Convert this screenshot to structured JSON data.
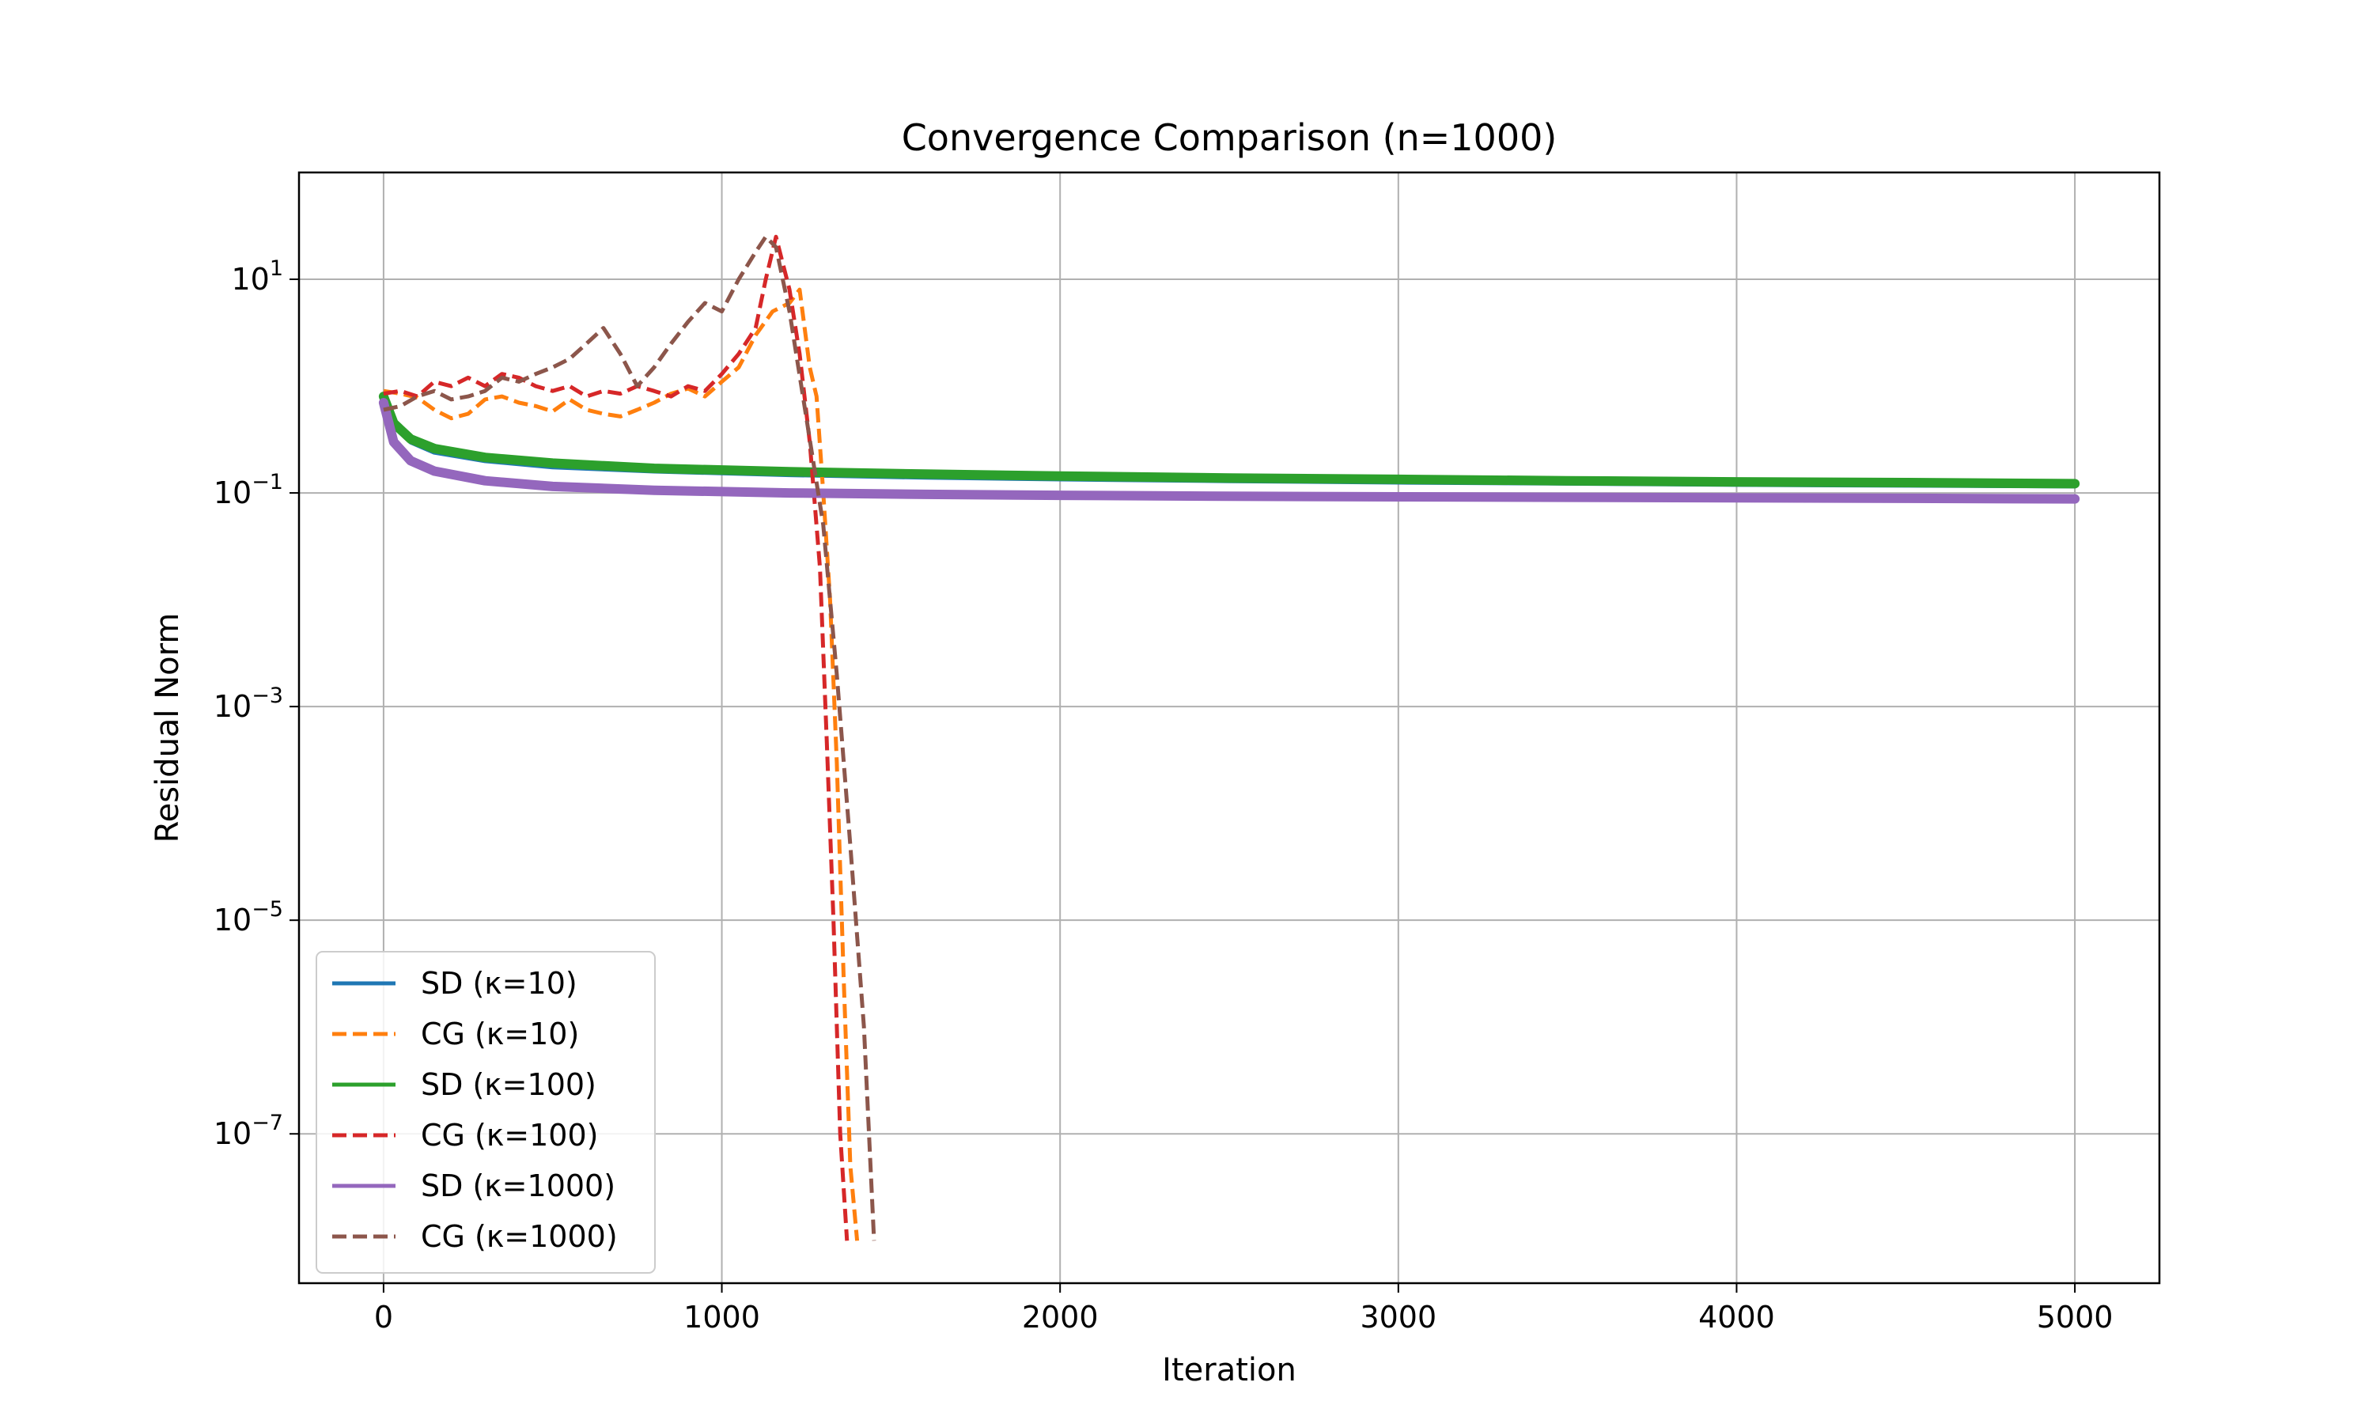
{
  "chart_data": {
    "type": "line",
    "title": "Convergence Comparison (n=1000)",
    "xlabel": "Iteration",
    "ylabel": "Residual Norm",
    "xlim": [
      -250,
      5250
    ],
    "ylim": [
      4e-09,
      100
    ],
    "yscale": "log",
    "xticks": [
      {
        "value": 0,
        "label": "0"
      },
      {
        "value": 1000,
        "label": "1000"
      },
      {
        "value": 2000,
        "label": "2000"
      },
      {
        "value": 3000,
        "label": "3000"
      },
      {
        "value": 4000,
        "label": "4000"
      },
      {
        "value": 5000,
        "label": "5000"
      }
    ],
    "yticks": [
      {
        "value": 10,
        "base": "10",
        "exp": "1"
      },
      {
        "value": 0.1,
        "base": "10",
        "exp": "−1"
      },
      {
        "value": 0.001,
        "base": "10",
        "exp": "−3"
      },
      {
        "value": 1e-05,
        "base": "10",
        "exp": "−5"
      },
      {
        "value": 1e-07,
        "base": "10",
        "exp": "−7"
      }
    ],
    "grid": true,
    "legend": "lower-left",
    "series": [
      {
        "name": "SD (κ=10)",
        "color": "#1f77b4",
        "dash": false,
        "width": 6,
        "x": [
          0,
          30,
          80,
          150,
          300,
          500,
          800,
          1200,
          1600,
          2000,
          2500,
          3000,
          3500,
          4000,
          4500,
          5000
        ],
        "y": [
          0.75,
          0.42,
          0.3,
          0.24,
          0.2,
          0.175,
          0.16,
          0.148,
          0.14,
          0.135,
          0.13,
          0.126,
          0.123,
          0.12,
          0.118,
          0.116
        ]
      },
      {
        "name": "CG (κ=10)",
        "color": "#ff7f0e",
        "dash": true,
        "width": 5,
        "x": [
          0,
          50,
          100,
          150,
          200,
          250,
          300,
          350,
          400,
          450,
          500,
          550,
          600,
          650,
          700,
          750,
          800,
          850,
          900,
          950,
          1000,
          1050,
          1100,
          1150,
          1200,
          1230,
          1260,
          1280,
          1300,
          1320,
          1340,
          1360,
          1380,
          1400
        ],
        "y": [
          0.9,
          0.85,
          0.78,
          0.6,
          0.5,
          0.55,
          0.75,
          0.8,
          0.7,
          0.65,
          0.58,
          0.75,
          0.6,
          0.55,
          0.52,
          0.6,
          0.7,
          0.85,
          0.95,
          0.8,
          1.1,
          1.5,
          3.0,
          5.0,
          6.0,
          8.0,
          1.5,
          0.8,
          0.1,
          0.01,
          0.0003,
          3e-06,
          5e-08,
          1e-08
        ]
      },
      {
        "name": "SD (κ=100)",
        "color": "#2ca02c",
        "dash": false,
        "width": 12,
        "x": [
          0,
          30,
          80,
          150,
          300,
          500,
          800,
          1200,
          1600,
          2000,
          2500,
          3000,
          3500,
          4000,
          4500,
          5000
        ],
        "y": [
          0.8,
          0.45,
          0.32,
          0.26,
          0.215,
          0.19,
          0.17,
          0.158,
          0.15,
          0.144,
          0.138,
          0.134,
          0.13,
          0.127,
          0.125,
          0.122
        ]
      },
      {
        "name": "CG (κ=100)",
        "color": "#d62728",
        "dash": true,
        "width": 5,
        "x": [
          0,
          50,
          100,
          150,
          200,
          250,
          300,
          350,
          400,
          450,
          500,
          550,
          600,
          650,
          700,
          750,
          800,
          850,
          900,
          950,
          1000,
          1050,
          1100,
          1130,
          1160,
          1200,
          1230,
          1260,
          1290,
          1310,
          1330,
          1350,
          1370
        ],
        "y": [
          0.85,
          0.9,
          0.8,
          1.1,
          1.0,
          1.2,
          1.0,
          1.3,
          1.2,
          1.0,
          0.9,
          1.0,
          0.8,
          0.9,
          0.85,
          1.0,
          0.9,
          0.8,
          1.0,
          0.9,
          1.3,
          2.0,
          3.5,
          10.0,
          25.0,
          8.0,
          2.0,
          0.3,
          0.02,
          0.0005,
          1e-05,
          1e-07,
          1e-08
        ]
      },
      {
        "name": "SD (κ=1000)",
        "color": "#9467bd",
        "dash": false,
        "width": 12,
        "x": [
          0,
          30,
          80,
          150,
          300,
          500,
          800,
          1200,
          1600,
          2000,
          2500,
          3000,
          3500,
          4000,
          4500,
          5000
        ],
        "y": [
          0.7,
          0.3,
          0.2,
          0.16,
          0.13,
          0.115,
          0.106,
          0.1,
          0.097,
          0.095,
          0.093,
          0.092,
          0.091,
          0.09,
          0.089,
          0.088
        ]
      },
      {
        "name": "CG (κ=1000)",
        "color": "#8c564b",
        "dash": true,
        "width": 5,
        "x": [
          0,
          50,
          100,
          150,
          200,
          250,
          300,
          350,
          400,
          450,
          500,
          550,
          600,
          650,
          700,
          750,
          800,
          850,
          900,
          950,
          1000,
          1050,
          1100,
          1130,
          1160,
          1200,
          1250,
          1300,
          1340,
          1380,
          1420,
          1450
        ],
        "y": [
          0.6,
          0.65,
          0.8,
          0.9,
          0.75,
          0.8,
          0.9,
          1.2,
          1.1,
          1.3,
          1.5,
          1.8,
          2.5,
          3.5,
          2.0,
          1.0,
          1.5,
          2.5,
          4.0,
          6.0,
          5.0,
          10.0,
          18.0,
          25.0,
          20.0,
          5.0,
          0.5,
          0.05,
          0.002,
          5e-05,
          1e-06,
          1e-08
        ]
      }
    ]
  }
}
